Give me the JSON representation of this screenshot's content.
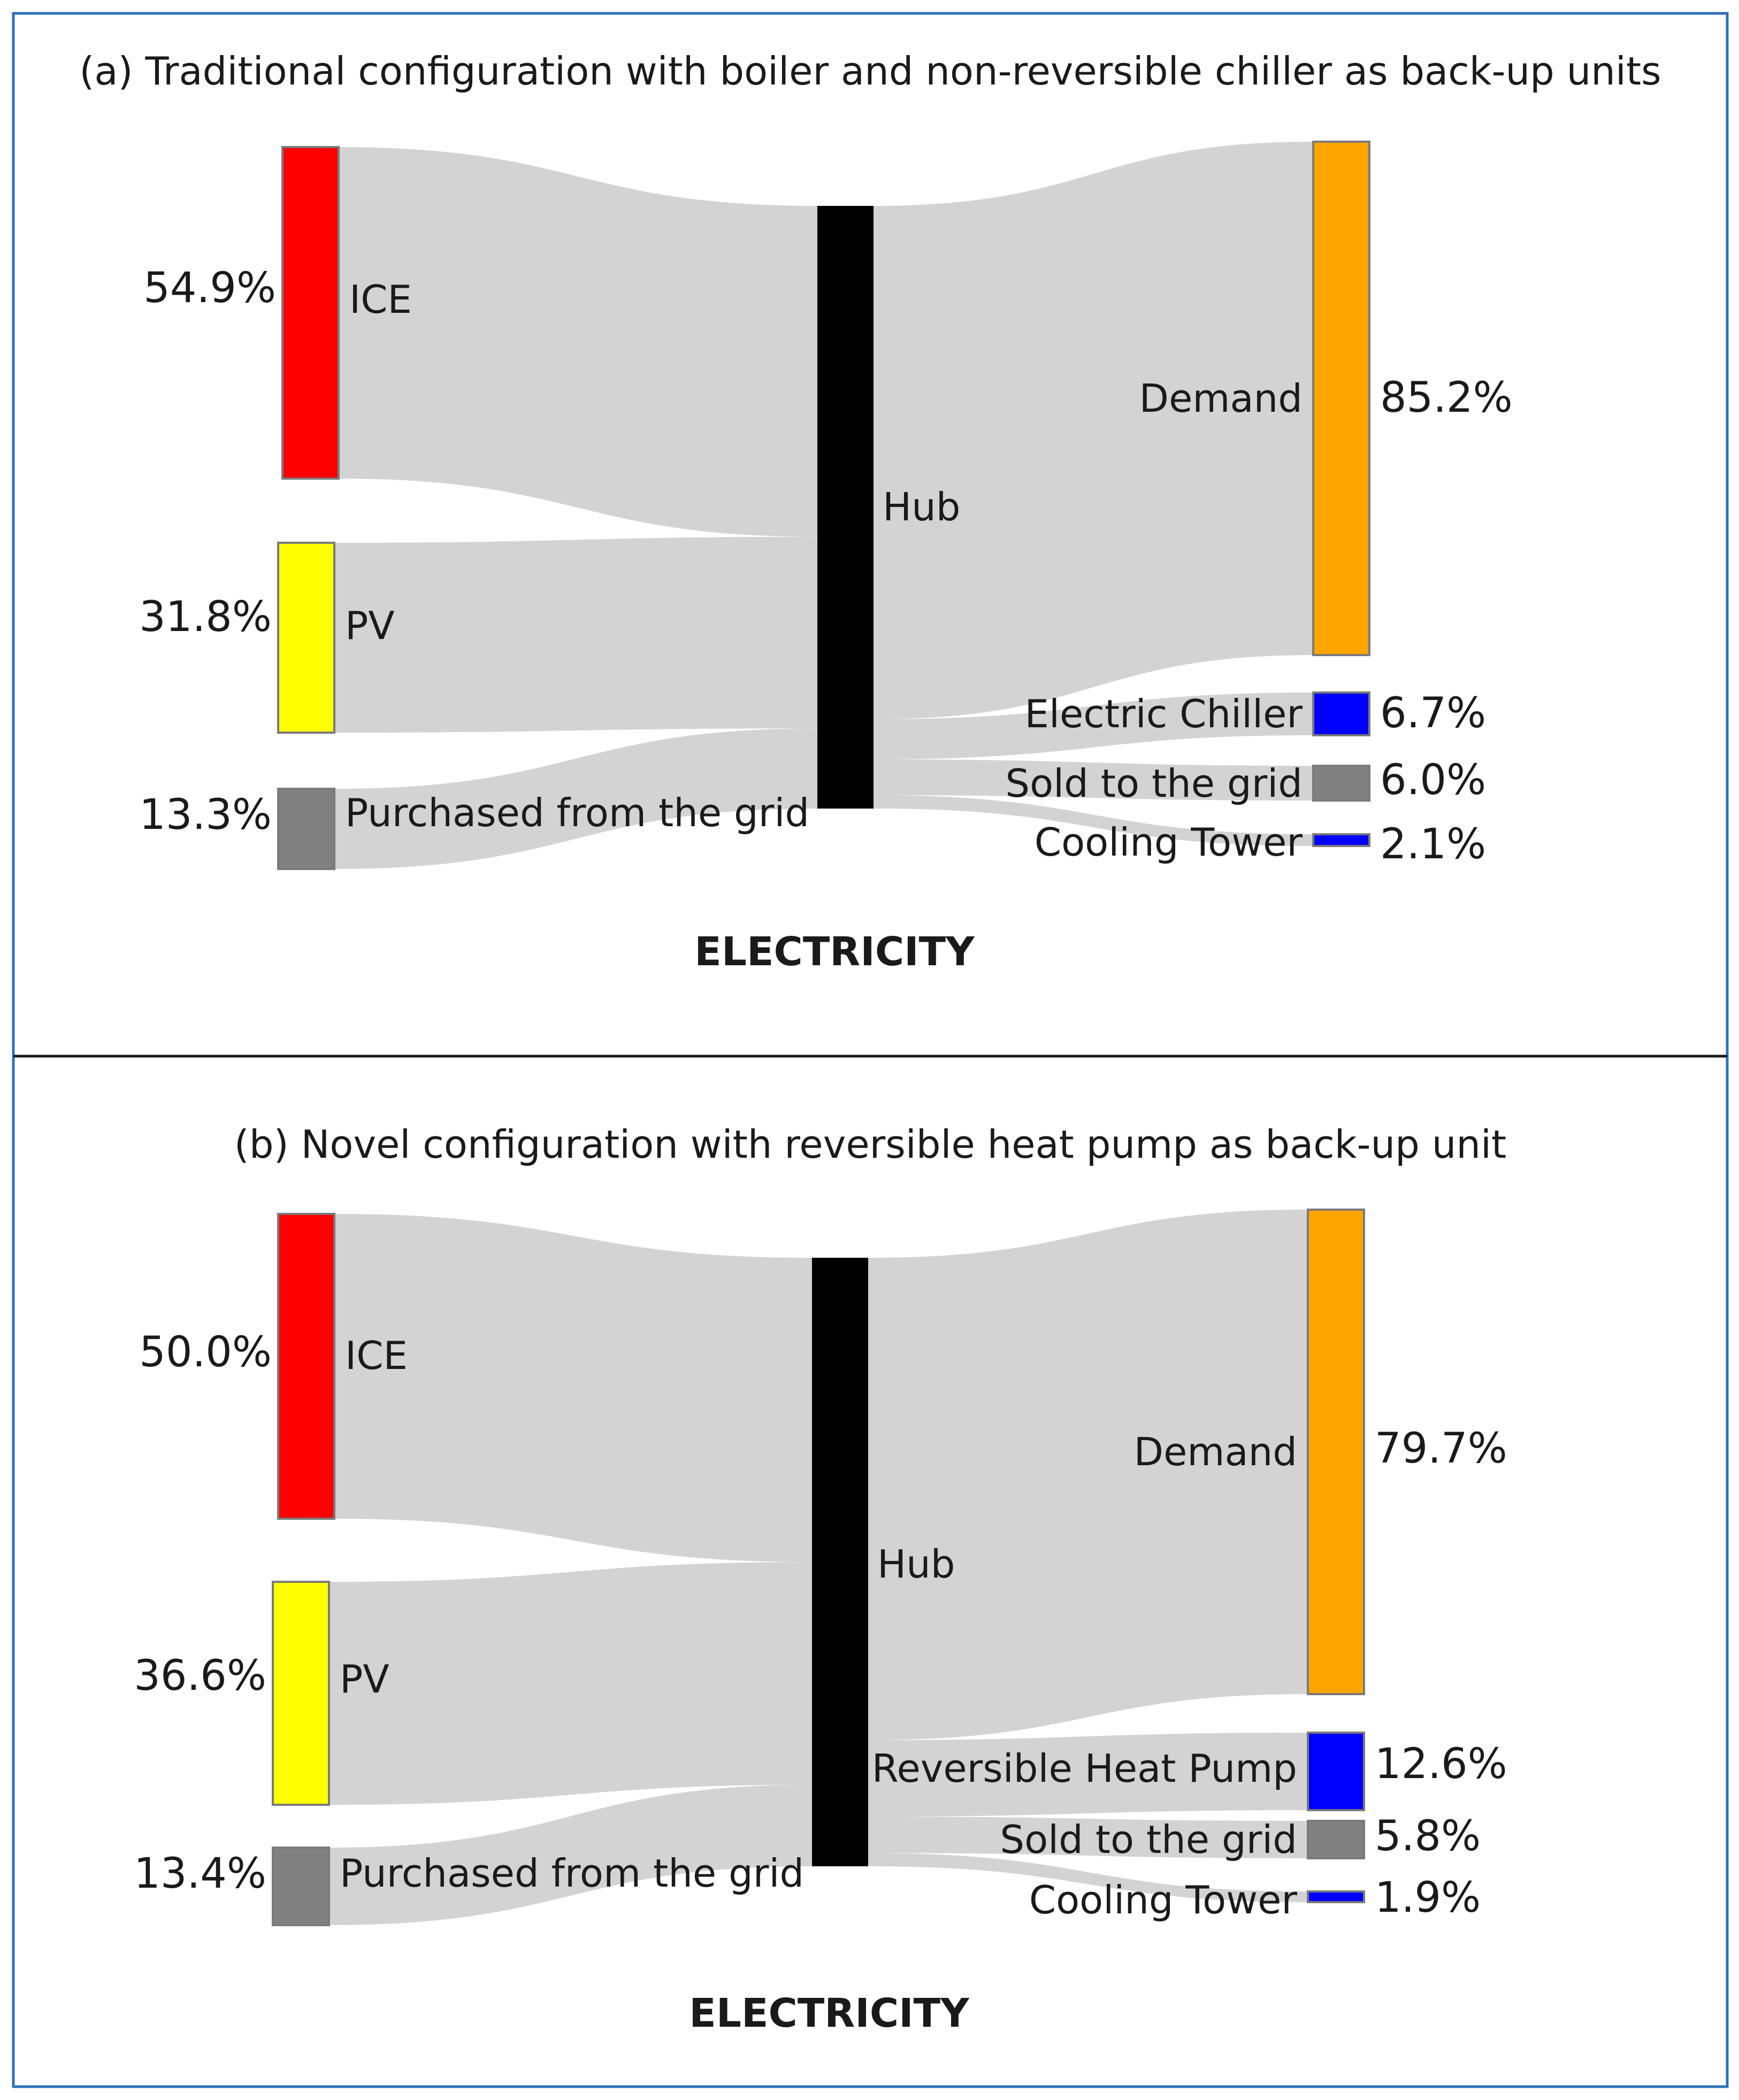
{
  "colors": {
    "border": "#2f6fb8",
    "divider": "#1a1a1a",
    "flow": "#d3d3d3",
    "hub": "#000000",
    "ice": "#ff0000",
    "pv": "#ffff00",
    "grid": "#808080",
    "demand": "#ffa500",
    "blue": "#0000ff"
  },
  "panels": [
    {
      "title": "(a) Traditional configuration with boiler and non-reversible chiller as back-up units",
      "footer": "ELECTRICITY",
      "hub_label": "Hub",
      "sources": [
        {
          "label": "ICE",
          "pct": "54.9%",
          "value": 54.9,
          "color": "#ff0000"
        },
        {
          "label": "PV",
          "pct": "31.8%",
          "value": 31.8,
          "color": "#ffff00"
        },
        {
          "label": "Purchased from the grid",
          "pct": "13.3%",
          "value": 13.3,
          "color": "#808080"
        }
      ],
      "sinks": [
        {
          "label": "Demand",
          "pct": "85.2%",
          "value": 85.2,
          "color": "#ffa500"
        },
        {
          "label": "Electric Chiller",
          "pct": "6.7%",
          "value": 6.7,
          "color": "#0000ff"
        },
        {
          "label": "Sold to the grid",
          "pct": "6.0%",
          "value": 6.0,
          "color": "#808080"
        },
        {
          "label": "Cooling Tower",
          "pct": "2.1%",
          "value": 2.1,
          "color": "#0000ff"
        }
      ]
    },
    {
      "title": "(b) Novel configuration with reversible heat pump as back-up unit",
      "footer": "ELECTRICITY",
      "hub_label": "Hub",
      "sources": [
        {
          "label": "ICE",
          "pct": "50.0%",
          "value": 50.0,
          "color": "#ff0000"
        },
        {
          "label": "PV",
          "pct": "36.6%",
          "value": 36.6,
          "color": "#ffff00"
        },
        {
          "label": "Purchased from the grid",
          "pct": "13.4%",
          "value": 13.4,
          "color": "#808080"
        }
      ],
      "sinks": [
        {
          "label": "Demand",
          "pct": "79.7%",
          "value": 79.7,
          "color": "#ffa500"
        },
        {
          "label": "Reversible Heat Pump",
          "pct": "12.6%",
          "value": 12.6,
          "color": "#0000ff"
        },
        {
          "label": "Sold to the grid",
          "pct": "5.8%",
          "value": 5.8,
          "color": "#808080"
        },
        {
          "label": "Cooling Tower",
          "pct": "1.9%",
          "value": 1.9,
          "color": "#0000ff"
        }
      ]
    }
  ]
}
